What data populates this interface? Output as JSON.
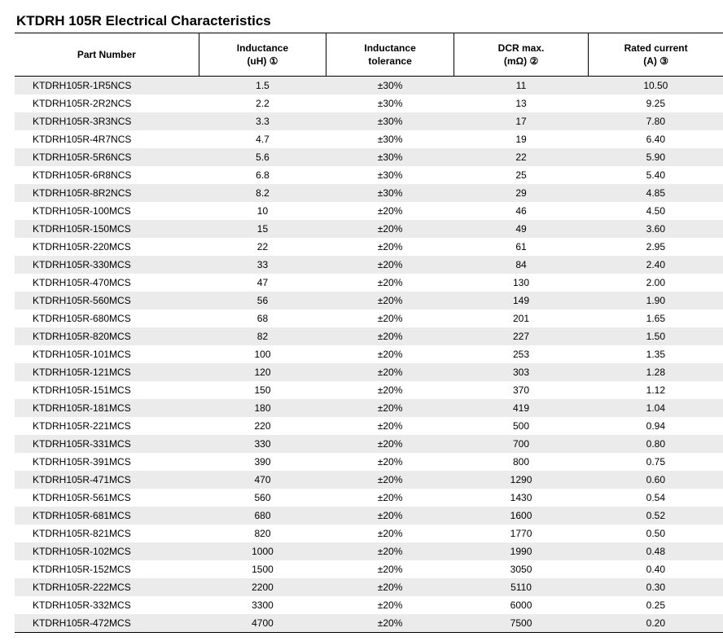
{
  "title": "KTDRH 105R Electrical Characteristics",
  "columns": [
    {
      "key": "part",
      "label_l1": "Part Number",
      "label_l2": ""
    },
    {
      "key": "ind",
      "label_l1": "Inductance",
      "label_l2": "(uH) ①"
    },
    {
      "key": "tol",
      "label_l1": "Inductance",
      "label_l2": "tolerance"
    },
    {
      "key": "dcr",
      "label_l1": "DCR max.",
      "label_l2": "(mΩ) ②"
    },
    {
      "key": "cur",
      "label_l1": "Rated current",
      "label_l2": "(A) ③"
    }
  ],
  "rows": [
    [
      "KTDRH105R-1R5NCS",
      "1.5",
      "±30%",
      "11",
      "10.50"
    ],
    [
      "KTDRH105R-2R2NCS",
      "2.2",
      "±30%",
      "13",
      "9.25"
    ],
    [
      "KTDRH105R-3R3NCS",
      "3.3",
      "±30%",
      "17",
      "7.80"
    ],
    [
      "KTDRH105R-4R7NCS",
      "4.7",
      "±30%",
      "19",
      "6.40"
    ],
    [
      "KTDRH105R-5R6NCS",
      "5.6",
      "±30%",
      "22",
      "5.90"
    ],
    [
      "KTDRH105R-6R8NCS",
      "6.8",
      "±30%",
      "25",
      "5.40"
    ],
    [
      "KTDRH105R-8R2NCS",
      "8.2",
      "±30%",
      "29",
      "4.85"
    ],
    [
      "KTDRH105R-100MCS",
      "10",
      "±20%",
      "46",
      "4.50"
    ],
    [
      "KTDRH105R-150MCS",
      "15",
      "±20%",
      "49",
      "3.60"
    ],
    [
      "KTDRH105R-220MCS",
      "22",
      "±20%",
      "61",
      "2.95"
    ],
    [
      "KTDRH105R-330MCS",
      "33",
      "±20%",
      "84",
      "2.40"
    ],
    [
      "KTDRH105R-470MCS",
      "47",
      "±20%",
      "130",
      "2.00"
    ],
    [
      "KTDRH105R-560MCS",
      "56",
      "±20%",
      "149",
      "1.90"
    ],
    [
      "KTDRH105R-680MCS",
      "68",
      "±20%",
      "201",
      "1.65"
    ],
    [
      "KTDRH105R-820MCS",
      "82",
      "±20%",
      "227",
      "1.50"
    ],
    [
      "KTDRH105R-101MCS",
      "100",
      "±20%",
      "253",
      "1.35"
    ],
    [
      "KTDRH105R-121MCS",
      "120",
      "±20%",
      "303",
      "1.28"
    ],
    [
      "KTDRH105R-151MCS",
      "150",
      "±20%",
      "370",
      "1.12"
    ],
    [
      "KTDRH105R-181MCS",
      "180",
      "±20%",
      "419",
      "1.04"
    ],
    [
      "KTDRH105R-221MCS",
      "220",
      "±20%",
      "500",
      "0.94"
    ],
    [
      "KTDRH105R-331MCS",
      "330",
      "±20%",
      "700",
      "0.80"
    ],
    [
      "KTDRH105R-391MCS",
      "390",
      "±20%",
      "800",
      "0.75"
    ],
    [
      "KTDRH105R-471MCS",
      "470",
      "±20%",
      "1290",
      "0.60"
    ],
    [
      "KTDRH105R-561MCS",
      "560",
      "±20%",
      "1430",
      "0.54"
    ],
    [
      "KTDRH105R-681MCS",
      "680",
      "±20%",
      "1600",
      "0.52"
    ],
    [
      "KTDRH105R-821MCS",
      "820",
      "±20%",
      "1770",
      "0.50"
    ],
    [
      "KTDRH105R-102MCS",
      "1000",
      "±20%",
      "1990",
      "0.48"
    ],
    [
      "KTDRH105R-152MCS",
      "1500",
      "±20%",
      "3050",
      "0.40"
    ],
    [
      "KTDRH105R-222MCS",
      "2200",
      "±20%",
      "5110",
      "0.30"
    ],
    [
      "KTDRH105R-332MCS",
      "3300",
      "±20%",
      "6000",
      "0.25"
    ],
    [
      "KTDRH105R-472MCS",
      "4700",
      "±20%",
      "7500",
      "0.20"
    ]
  ]
}
